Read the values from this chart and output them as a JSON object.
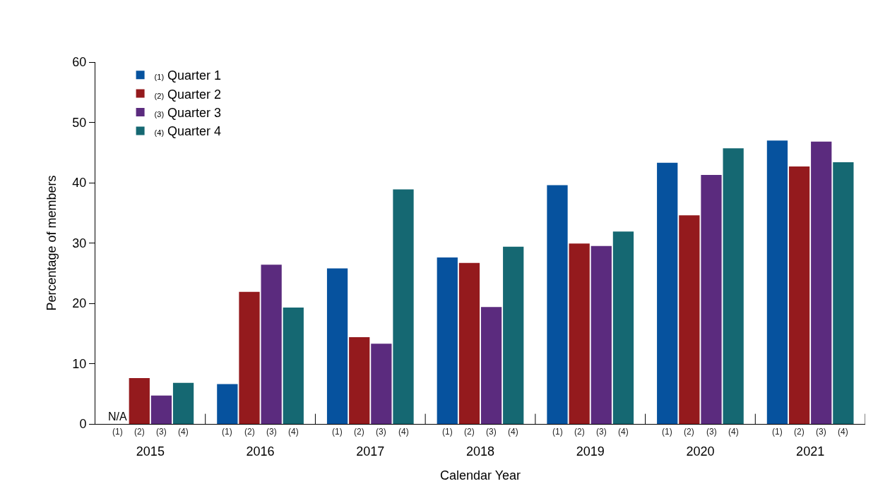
{
  "chart_data": {
    "type": "bar",
    "xlabel": "Calendar Year",
    "ylabel": "Percentage of members",
    "categories": [
      "2015",
      "2016",
      "2017",
      "2018",
      "2019",
      "2020",
      "2021"
    ],
    "series": [
      {
        "name": "Quarter 1",
        "color": "#06529e",
        "values": [
          null,
          6.6,
          25.8,
          27.6,
          39.6,
          43.3,
          47.0
        ]
      },
      {
        "name": "Quarter 2",
        "color": "#941a1d",
        "values": [
          7.6,
          21.9,
          14.4,
          26.7,
          29.9,
          34.6,
          42.7
        ]
      },
      {
        "name": "Quarter 3",
        "color": "#5b2b7e",
        "values": [
          4.7,
          26.4,
          13.3,
          19.4,
          29.5,
          41.3,
          46.8
        ]
      },
      {
        "name": "Quarter 4",
        "color": "#156872",
        "values": [
          6.8,
          19.3,
          38.9,
          29.4,
          31.9,
          45.7,
          43.4
        ]
      }
    ],
    "annotations": [
      "(1)",
      "(2)",
      "(3)",
      "(4)",
      {
        "text": "N/A",
        "x": "2015",
        "y": 0
      }
    ],
    "ylim": [
      0,
      60
    ],
    "yticks": [
      0,
      10,
      20,
      30,
      40,
      50,
      60
    ],
    "legend": "top left"
  }
}
